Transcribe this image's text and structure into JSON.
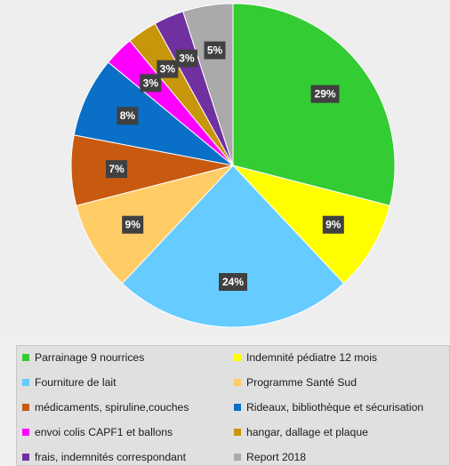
{
  "chart_data": {
    "type": "pie",
    "title": "",
    "slices": [
      {
        "label": "Parrainage 9 nourrices",
        "value": 29,
        "data_label": "29%",
        "color": "#33cc33"
      },
      {
        "label": "Indemnité pédiatre 12 mois",
        "value": 9,
        "data_label": "9%",
        "color": "#ffff00"
      },
      {
        "label": "Fourniture de lait",
        "value": 24,
        "data_label": "24%",
        "color": "#66ccff"
      },
      {
        "label": "Programme Santé Sud",
        "value": 9,
        "data_label": "9%",
        "color": "#ffcc66"
      },
      {
        "label": "médicaments, spiruline,couches",
        "value": 7,
        "data_label": "7%",
        "color": "#c85a10"
      },
      {
        "label": "Rideaux, bibliothèque et sécurisation",
        "value": 8,
        "data_label": "8%",
        "color": "#0a6fc6"
      },
      {
        "label": "envoi colis CAPF1 et ballons",
        "value": 3,
        "data_label": "3%",
        "color": "#ff00ff"
      },
      {
        "label": "hangar, dallage et plaque",
        "value": 3,
        "data_label": "3%",
        "color": "#c8960a"
      },
      {
        "label": "frais, indemnités correspondant",
        "value": 3,
        "data_label": "3%",
        "color": "#7030a0"
      },
      {
        "label": "Report 2018",
        "value": 5,
        "data_label": "5%",
        "color": "#aaaaaa"
      }
    ],
    "start_angle": "12 o'clock",
    "direction": "clockwise",
    "legend_position": "bottom",
    "legend_columns": 2
  }
}
